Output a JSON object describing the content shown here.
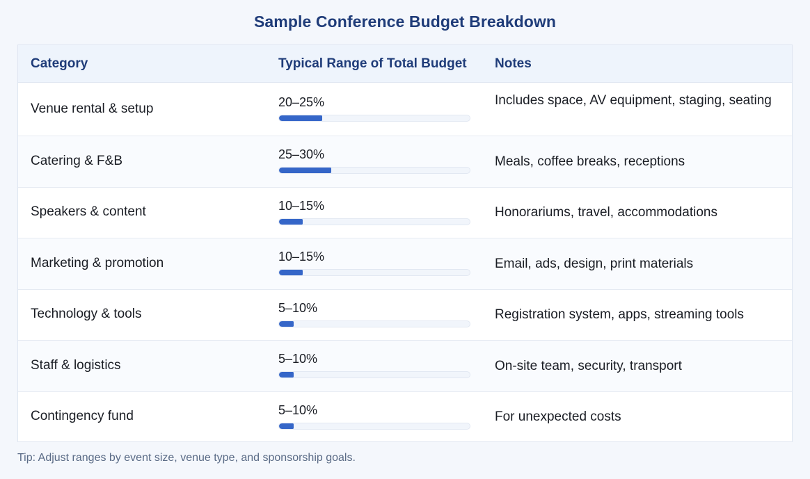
{
  "title": "Sample Conference Budget Breakdown",
  "columns": {
    "category": "Category",
    "range": "Typical Range of Total Budget",
    "notes": "Notes"
  },
  "rows": [
    {
      "category": "Venue rental & setup",
      "range": "20–25%",
      "range_fill_percent": 22.5,
      "notes": "Includes space, AV equipment, staging, seating"
    },
    {
      "category": "Catering & F&B",
      "range": "25–30%",
      "range_fill_percent": 27.5,
      "notes": "Meals, coffee breaks, receptions"
    },
    {
      "category": "Speakers & content",
      "range": "10–15%",
      "range_fill_percent": 12.5,
      "notes": "Honorariums, travel, accommodations"
    },
    {
      "category": "Marketing & promotion",
      "range": "10–15%",
      "range_fill_percent": 12.5,
      "notes": "Email, ads, design, print materials"
    },
    {
      "category": "Technology & tools",
      "range": "5–10%",
      "range_fill_percent": 7.5,
      "notes": "Registration system, apps, streaming tools"
    },
    {
      "category": "Staff & logistics",
      "range": "5–10%",
      "range_fill_percent": 7.5,
      "notes": "On-site team, security, transport"
    },
    {
      "category": "Contingency fund",
      "range": "5–10%",
      "range_fill_percent": 7.5,
      "notes": "For unexpected costs"
    }
  ],
  "tip": "Tip: Adjust ranges by event size, venue type, and sponsorship goals.",
  "colors": {
    "accent": "#1f3c79",
    "bar_fill": "#3566c8",
    "header_bg": "#eef4fc"
  }
}
